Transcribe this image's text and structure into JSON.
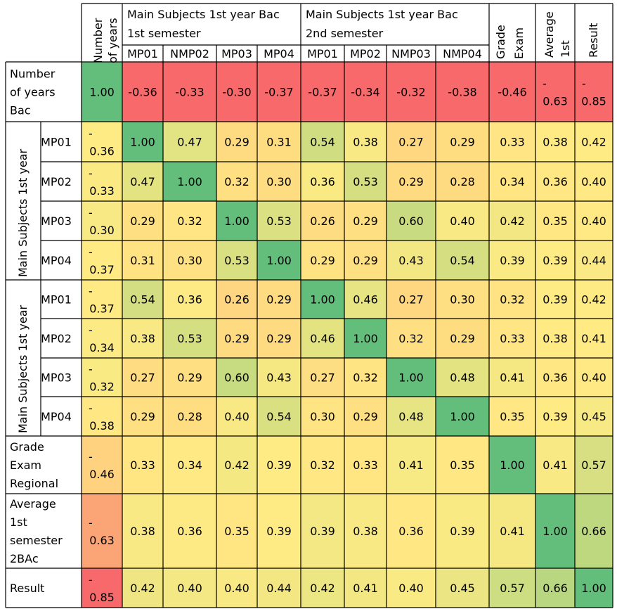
{
  "chart_data": {
    "type": "heatmap",
    "color_scale": {
      "low": "#f8696b",
      "mid": "#ffeb84",
      "high": "#63be7b"
    },
    "header": {
      "corner": "",
      "number_of_years": [
        "Number",
        "of years"
      ],
      "group1": [
        "Main Subjects 1st year Bac",
        "1st semester"
      ],
      "group2": [
        "Main Subjects 1st year Bac",
        "2nd semester"
      ],
      "grade_exam": [
        "Grade",
        "Exam"
      ],
      "average_1st": [
        "Average",
        "1st"
      ],
      "result": "Result",
      "subcolumns": [
        "MP01",
        "NMP02",
        "MP03",
        "MP04",
        "MP01",
        "MP02",
        "NMP03",
        "NMP04"
      ]
    },
    "row_groups": [
      {
        "label": "Main Subjects 1st year",
        "rows": [
          1,
          2,
          3,
          4
        ]
      },
      {
        "label": "Main Subjects 1st year",
        "rows": [
          5,
          6,
          7,
          8
        ]
      }
    ],
    "rows": [
      {
        "label": [
          "Number",
          "of years",
          "Bac"
        ],
        "values": [
          "1.00",
          "-0.36",
          "-0.33",
          "-0.30",
          "-0.37",
          "-0.37",
          "-0.34",
          "-0.32",
          "-0.38",
          "-0.46",
          "-\n0.63",
          "-\n0.85"
        ]
      },
      {
        "label": [
          "MP01"
        ],
        "values": [
          "-\n0.36",
          "1.00",
          "0.47",
          "0.29",
          "0.31",
          "0.54",
          "0.38",
          "0.27",
          "0.29",
          "0.33",
          "0.38",
          "0.42"
        ]
      },
      {
        "label": [
          "MP02"
        ],
        "values": [
          "-\n0.33",
          "0.47",
          "1.00",
          "0.32",
          "0.30",
          "0.36",
          "0.53",
          "0.29",
          "0.28",
          "0.34",
          "0.36",
          "0.40"
        ]
      },
      {
        "label": [
          "MP03"
        ],
        "values": [
          "-\n0.30",
          "0.29",
          "0.32",
          "1.00",
          "0.53",
          "0.26",
          "0.29",
          "0.60",
          "0.40",
          "0.42",
          "0.35",
          "0.40"
        ]
      },
      {
        "label": [
          "MP04"
        ],
        "values": [
          "-\n0.37",
          "0.31",
          "0.30",
          "0.53",
          "1.00",
          "0.29",
          "0.29",
          "0.43",
          "0.54",
          "0.39",
          "0.39",
          "0.44"
        ]
      },
      {
        "label": [
          "MP01"
        ],
        "values": [
          "-\n0.37",
          "0.54",
          "0.36",
          "0.26",
          "0.29",
          "1.00",
          "0.46",
          "0.27",
          "0.30",
          "0.32",
          "0.39",
          "0.42"
        ]
      },
      {
        "label": [
          "MP02"
        ],
        "values": [
          "-\n0.34",
          "0.38",
          "0.53",
          "0.29",
          "0.29",
          "0.46",
          "1.00",
          "0.32",
          "0.29",
          "0.33",
          "0.38",
          "0.41"
        ]
      },
      {
        "label": [
          "MP03"
        ],
        "values": [
          "-\n0.32",
          "0.27",
          "0.29",
          "0.60",
          "0.43",
          "0.27",
          "0.32",
          "1.00",
          "0.48",
          "0.41",
          "0.36",
          "0.40"
        ]
      },
      {
        "label": [
          "MP04"
        ],
        "values": [
          "-\n0.38",
          "0.29",
          "0.28",
          "0.40",
          "0.54",
          "0.30",
          "0.29",
          "0.48",
          "1.00",
          "0.35",
          "0.39",
          "0.45"
        ]
      },
      {
        "label": [
          "Grade",
          "Exam",
          "Regional"
        ],
        "values": [
          "-\n0.46",
          "0.33",
          "0.34",
          "0.42",
          "0.39",
          "0.32",
          "0.33",
          "0.41",
          "0.35",
          "1.00",
          "0.41",
          "0.57"
        ]
      },
      {
        "label": [
          "Average",
          "1st",
          "semester",
          "2BAc"
        ],
        "values": [
          "-\n0.63",
          "0.38",
          "0.36",
          "0.35",
          "0.39",
          "0.39",
          "0.38",
          "0.36",
          "0.39",
          "0.41",
          "1.00",
          "0.66"
        ]
      },
      {
        "label": [
          "Result"
        ],
        "values": [
          "-\n0.85",
          "0.42",
          "0.40",
          "0.40",
          "0.44",
          "0.42",
          "0.41",
          "0.40",
          "0.45",
          "0.57",
          "0.66",
          "1.00"
        ]
      }
    ]
  }
}
